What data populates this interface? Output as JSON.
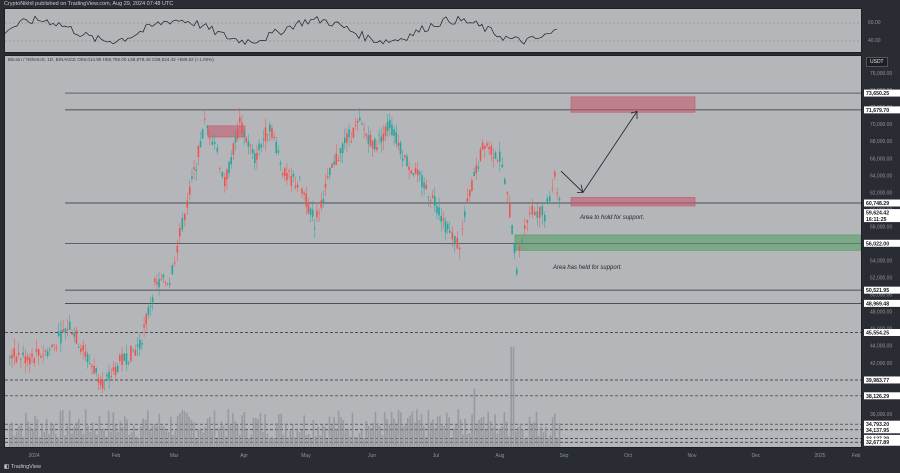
{
  "header": {
    "publisher": "CryptoNikhil published on TradingView.com, Aug 29, 2024 07:48 UTC"
  },
  "main": {
    "symbol_line": "Bitcoin / TetherUS, 1D, BINANCE  O59,014.90  H59,766.00  L58,878.46  C59,624.42  +589.52 (+1.00%)",
    "currency": "USDT",
    "annotations": [
      "Area to hold for support.",
      "Area has held for support."
    ]
  },
  "footer": {
    "brand": "TradingView"
  },
  "chart_data": {
    "type": "candlestick",
    "price_range": [
      32000,
      78000
    ],
    "price_ticks": [
      34000,
      36000,
      38000,
      40000,
      42000,
      44000,
      46000,
      48000,
      50000,
      52000,
      54000,
      56000,
      58000,
      60000,
      62000,
      64000,
      66000,
      68000,
      70000,
      72000,
      74000,
      76000
    ],
    "price_tick_labels": [
      "34,000.00",
      "36,000.00",
      "38,000.00",
      "40,000.00",
      "42,000.00",
      "44,000.00",
      "46,000.00",
      "48,000.00",
      "50,000.00",
      "52,000.00",
      "54,000.00",
      "56,000.00",
      "58,000.00",
      "60,000.00",
      "62,000.00",
      "64,000.00",
      "66,000.00",
      "68,000.00",
      "70,000.00",
      "72,000.00",
      "74,000.00",
      "76,000.00"
    ],
    "levels": [
      {
        "price": 73650.25,
        "label": "73,650.25"
      },
      {
        "price": 71679.7,
        "label": "71,679.70"
      },
      {
        "price": 60748.29,
        "label": "60,748.29"
      },
      {
        "price": 56022.0,
        "label": "56,022.00"
      },
      {
        "price": 50521.95,
        "label": "50,521.95"
      },
      {
        "price": 48969.48,
        "label": "48,969.48"
      },
      {
        "price": 45554.25,
        "label": "45,554.25"
      },
      {
        "price": 39983.77,
        "label": "39,983.77"
      },
      {
        "price": 38126.29,
        "label": "38,126.29"
      },
      {
        "price": 34793.2,
        "label": "34,793.20"
      },
      {
        "price": 34137.95,
        "label": "34,137.95"
      },
      {
        "price": 33127.39,
        "label": "33,127.39"
      },
      {
        "price": 32677.89,
        "label": "32,677.89"
      }
    ],
    "current_price": {
      "price": 59624.42,
      "label": "59,624.42",
      "countdown": "16:11:25"
    },
    "time_labels": [
      "2024",
      "Feb",
      "Mar",
      "Apr",
      "May",
      "Jun",
      "Jul",
      "Aug",
      "Sep",
      "Oct",
      "Nov",
      "Dec",
      "2025",
      "Feb"
    ],
    "rsi_ticks": [
      {
        "value": 60,
        "label": "60.00"
      },
      {
        "value": 40,
        "label": "40.00"
      }
    ],
    "zones": [
      {
        "name": "target-zone",
        "price_top": 73200,
        "price_bottom": 71400,
        "color": "#c9546a"
      },
      {
        "name": "resistance-zone-feb",
        "price_top": 69800,
        "price_bottom": 68500,
        "color": "#c9546a"
      },
      {
        "name": "hold-zone",
        "price_top": 61400,
        "price_bottom": 60400,
        "color": "#c9546a"
      },
      {
        "name": "held-support-zone",
        "price_top": 57000,
        "price_bottom": 55200,
        "color": "#4f9a5e"
      }
    ],
    "colors": {
      "up": "#26a69a",
      "down": "#ef5350",
      "volume": "#8c8f96"
    }
  }
}
